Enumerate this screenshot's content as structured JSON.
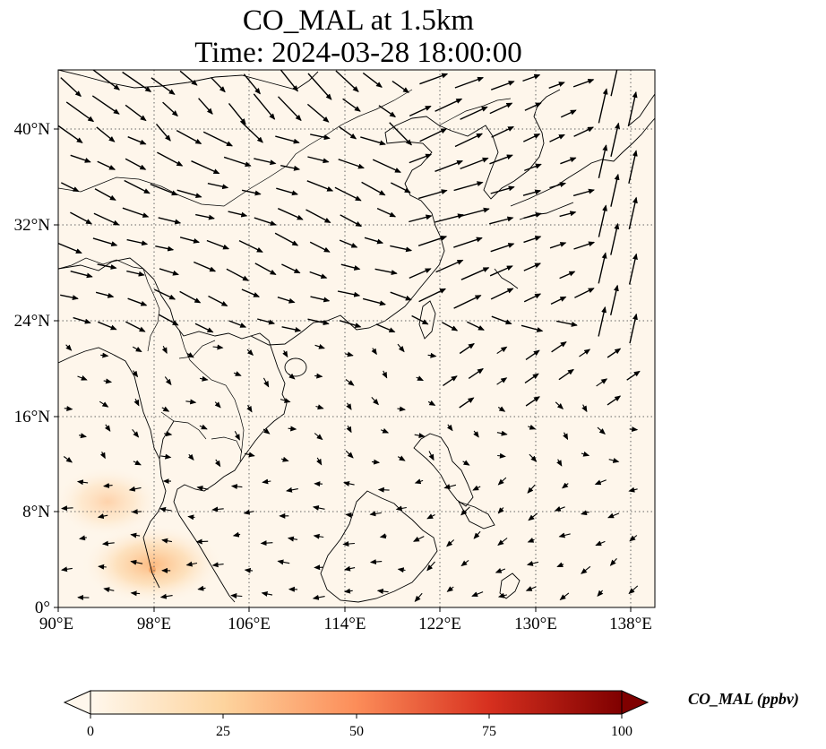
{
  "title": {
    "line1": "CO_MAL at 1.5km",
    "line2": "Time: 2024-03-28 18:00:00"
  },
  "map": {
    "variable": "CO_MAL",
    "level": "1.5km",
    "time": "2024-03-28 18:00:00",
    "extent": {
      "lon_min": 90,
      "lon_max": 139.8,
      "lat_min": 0,
      "lat_max": 45
    },
    "background_color": "#fef6eb",
    "gridlines": "dotted",
    "lat_ticks": [
      "0°",
      "8°N",
      "16°N",
      "24°N",
      "32°N",
      "40°N"
    ],
    "lon_ticks": [
      "90°E",
      "98°E",
      "106°E",
      "114°E",
      "122°E",
      "130°E",
      "138°E"
    ],
    "features": [
      "coastlines",
      "country borders",
      "wind vectors"
    ]
  },
  "colorbar": {
    "label": "CO_MAL (ppbv)",
    "ticks": [
      "0",
      "25",
      "50",
      "75",
      "100"
    ],
    "min": 0,
    "max": 100,
    "extend": "both",
    "colormap": [
      "#fff7ec",
      "#fdd49e",
      "#fc8d59",
      "#d7301f",
      "#7f0000"
    ]
  }
}
